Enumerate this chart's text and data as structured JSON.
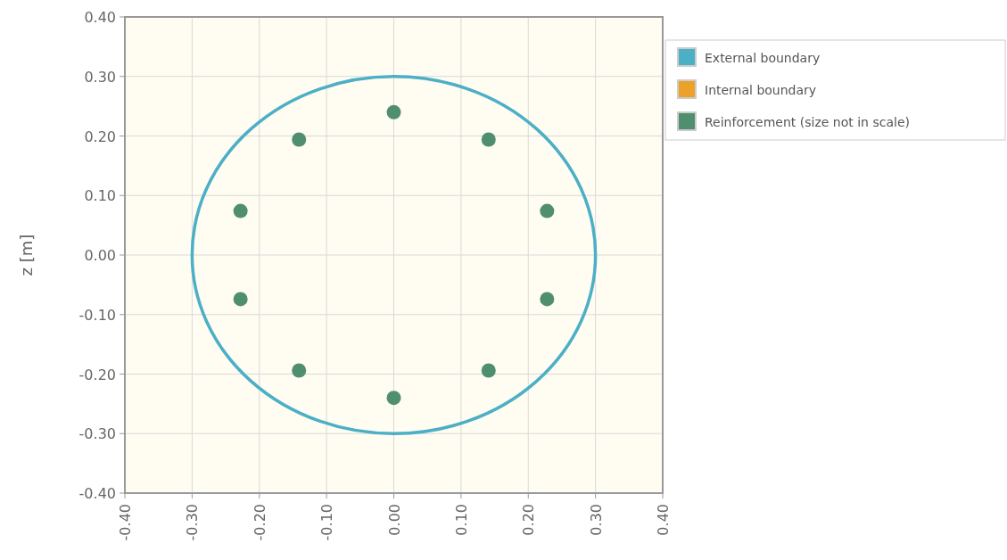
{
  "chart_data": {
    "type": "scatter",
    "ylabel": "z [m]",
    "xlim": [
      -0.4,
      0.4
    ],
    "xticks": [
      {
        "value": -0.4,
        "label": "-0.40"
      },
      {
        "value": -0.3,
        "label": "-0.30"
      },
      {
        "value": -0.2,
        "label": "-0.20"
      },
      {
        "value": -0.1,
        "label": "-0.10"
      },
      {
        "value": 0,
        "label": "0.00"
      },
      {
        "value": 0.1,
        "label": "0.10"
      },
      {
        "value": 0.2,
        "label": "0.20"
      },
      {
        "value": 0.3,
        "label": "0.30"
      },
      {
        "value": 0.4,
        "label": "0.40"
      }
    ],
    "ylim": [
      -0.4,
      0.4
    ],
    "yticks": [
      {
        "value": -0.4,
        "label": "-0.40"
      },
      {
        "value": -0.3,
        "label": "-0.30"
      },
      {
        "value": -0.2,
        "label": "-0.20"
      },
      {
        "value": -0.1,
        "label": "-0.10"
      },
      {
        "value": 0,
        "label": "0.00"
      },
      {
        "value": 0.1,
        "label": "0.10"
      },
      {
        "value": 0.2,
        "label": "0.20"
      },
      {
        "value": 0.3,
        "label": "0.30"
      },
      {
        "value": 0.4,
        "label": "0.40"
      }
    ],
    "grid": true,
    "legend": "right",
    "series": [
      {
        "name": "External boundary",
        "color": "#4bafc6"
      },
      {
        "name": "Internal boundary",
        "color": "#eba12a"
      },
      {
        "name": "Reinforcement (size not in scale)",
        "color": "#4f8f6f",
        "marker": "circle",
        "x": [
          0,
          0.141,
          0.228,
          0.228,
          0.141,
          0,
          -0.141,
          -0.228,
          -0.228,
          -0.141
        ],
        "values": [
          0.24,
          0.194,
          0.074,
          -0.074,
          -0.194,
          -0.24,
          -0.194,
          -0.074,
          0.074,
          0.194
        ]
      }
    ]
  }
}
